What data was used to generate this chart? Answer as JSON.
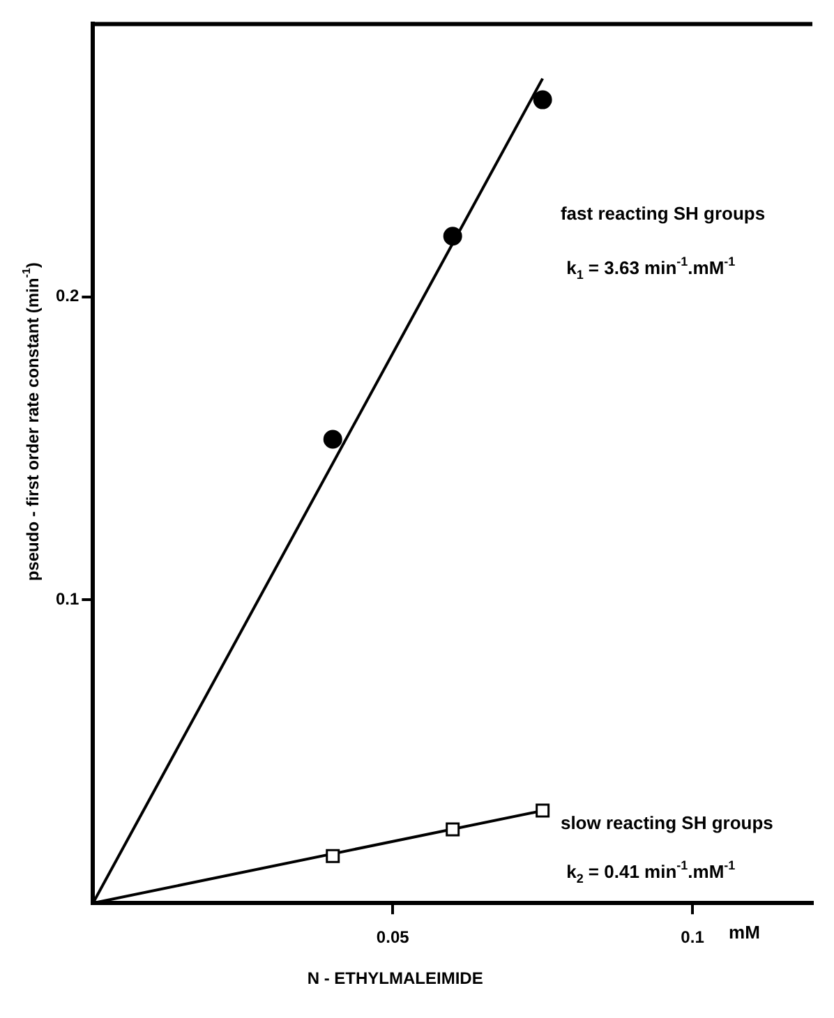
{
  "chart_data": {
    "type": "scatter",
    "xlabel": "N - ETHYLMALEIMIDE",
    "ylabel": "pseudo - first order rate constant (min$^{-1}$)",
    "xlim": [
      0,
      0.12
    ],
    "ylim": [
      0,
      0.29
    ],
    "xticks": [
      0.05,
      0.1
    ],
    "yticks": [
      0.1,
      0.2
    ],
    "grid": false,
    "legend": false,
    "series": [
      {
        "marker": "circle",
        "color": "#000000",
        "x": [
          0.04,
          0.06,
          0.075
        ],
        "values": [
          0.153,
          0.22,
          0.265
        ]
      },
      {
        "type": "line",
        "marker": "none",
        "color": "#000000",
        "x": [
          0,
          0.075
        ],
        "values": [
          0,
          0.272
        ]
      },
      {
        "marker": "square",
        "color": "#000000",
        "x": [
          0.04,
          0.06,
          0.075
        ],
        "values": [
          0.0155,
          0.0243,
          0.0305
        ]
      },
      {
        "type": "line",
        "marker": "none",
        "color": "#000000",
        "x": [
          0,
          0.075
        ],
        "values": [
          0,
          0.0305
        ]
      }
    ],
    "annotations": [
      "fast reacting SH groups",
      "k$_{1}$ = 3.63 min$^{-1}$.mM$^{-1}$",
      "slow reacting SH groups",
      "k$_{2}$ = 0.41 min$^{-1}$.mM$^{-1}$",
      "mM"
    ]
  }
}
